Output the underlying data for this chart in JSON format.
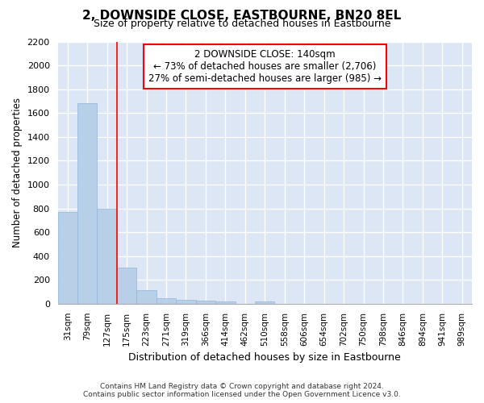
{
  "title": "2, DOWNSIDE CLOSE, EASTBOURNE, BN20 8EL",
  "subtitle": "Size of property relative to detached houses in Eastbourne",
  "xlabel": "Distribution of detached houses by size in Eastbourne",
  "ylabel": "Number of detached properties",
  "footer_line1": "Contains HM Land Registry data © Crown copyright and database right 2024.",
  "footer_line2": "Contains public sector information licensed under the Open Government Licence v3.0.",
  "categories": [
    "31sqm",
    "79sqm",
    "127sqm",
    "175sqm",
    "223sqm",
    "271sqm",
    "319sqm",
    "366sqm",
    "414sqm",
    "462sqm",
    "510sqm",
    "558sqm",
    "606sqm",
    "654sqm",
    "702sqm",
    "750sqm",
    "798sqm",
    "846sqm",
    "894sqm",
    "941sqm",
    "989sqm"
  ],
  "values": [
    770,
    1680,
    800,
    300,
    115,
    45,
    32,
    25,
    22,
    0,
    22,
    0,
    0,
    0,
    0,
    0,
    0,
    0,
    0,
    0,
    0
  ],
  "bar_color": "#b8cfe8",
  "bar_edge_color": "#93b4d8",
  "bg_color": "#dce6f5",
  "grid_color": "#ffffff",
  "vline_color": "red",
  "vline_position": 2.5,
  "annotation_line1": "2 DOWNSIDE CLOSE: 140sqm",
  "annotation_line2": "← 73% of detached houses are smaller (2,706)",
  "annotation_line3": "27% of semi-detached houses are larger (985) →",
  "annotation_box_color": "white",
  "annotation_box_edge": "red",
  "ylim": [
    0,
    2200
  ],
  "yticks": [
    0,
    200,
    400,
    600,
    800,
    1000,
    1200,
    1400,
    1600,
    1800,
    2000,
    2200
  ]
}
